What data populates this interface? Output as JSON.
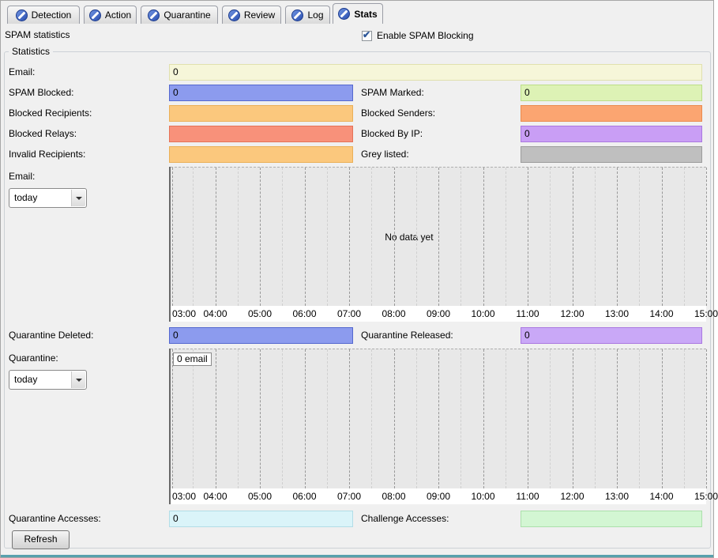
{
  "tabs": [
    {
      "label": "Detection"
    },
    {
      "label": "Action"
    },
    {
      "label": "Quarantine"
    },
    {
      "label": "Review"
    },
    {
      "label": "Log"
    },
    {
      "label": "Stats"
    }
  ],
  "active_tab": "Stats",
  "header": {
    "title": "SPAM statistics",
    "enable_checkbox_label": "Enable SPAM Blocking",
    "enable_checkbox_checked": true,
    "check_glyph": "✔"
  },
  "group": {
    "label": "Statistics"
  },
  "fields": {
    "email": {
      "label": "Email:",
      "value": "0",
      "bg": "#f6f6d9",
      "border": "#e0e0ae"
    },
    "spam_blocked": {
      "label": "SPAM Blocked:",
      "value": "0",
      "bg": "#8c9bee",
      "border": "#5468cf"
    },
    "spam_marked": {
      "label": "SPAM Marked:",
      "value": "0",
      "bg": "#ddf2b5",
      "border": "#bcdd87"
    },
    "blocked_recipients": {
      "label": "Blocked Recipients:",
      "value": "",
      "bg": "#fbc87d",
      "border": "#eab058"
    },
    "blocked_senders": {
      "label": "Blocked Senders:",
      "value": "",
      "bg": "#fba571",
      "border": "#ea8b4e"
    },
    "blocked_relays": {
      "label": "Blocked Relays:",
      "value": "",
      "bg": "#f8917a",
      "border": "#e57257"
    },
    "blocked_by_ip": {
      "label": "Blocked By IP:",
      "value": "0",
      "bg": "#c99ef5",
      "border": "#aa78e0"
    },
    "invalid_recipients": {
      "label": "Invalid Recipients:",
      "value": "",
      "bg": "#fbc87d",
      "border": "#eab058"
    },
    "grey_listed": {
      "label": "Grey listed:",
      "value": "",
      "bg": "#bfbfbf",
      "border": "#9c9c9c"
    },
    "quarantine_deleted": {
      "label": "Quarantine Deleted:",
      "value": "0",
      "bg": "#8c9bee",
      "border": "#5468cf"
    },
    "quarantine_released": {
      "label": "Quarantine Released:",
      "value": "0",
      "bg": "#c9a8f7",
      "border": "#aa78e0"
    },
    "quarantine_accesses": {
      "label": "Quarantine Accesses:",
      "value": "0",
      "bg": "#daf4f9",
      "border": "#b2dde7"
    },
    "challenge_accesses": {
      "label": "Challenge Accesses:",
      "value": "",
      "bg": "#d3f6d3",
      "border": "#abe0ab"
    }
  },
  "selectors": {
    "email": {
      "label": "Email:",
      "value": "today"
    },
    "quarantine": {
      "label": "Quarantine:",
      "value": "today"
    }
  },
  "buttons": {
    "refresh": "Refresh"
  },
  "chart_data": [
    {
      "type": "line",
      "x_ticks": [
        "03:00",
        "04:00",
        "05:00",
        "06:00",
        "07:00",
        "08:00",
        "09:00",
        "10:00",
        "11:00",
        "12:00",
        "13:00",
        "14:00",
        "15:00"
      ],
      "minor_ticks_per_interval": 1,
      "series": [],
      "annotation": "No data yet",
      "grid": "vertical-dashed",
      "plot_bg": "#e8e8e8",
      "legend_position": "none"
    },
    {
      "type": "line",
      "x_ticks": [
        "03:00",
        "04:00",
        "05:00",
        "06:00",
        "07:00",
        "08:00",
        "09:00",
        "10:00",
        "11:00",
        "12:00",
        "13:00",
        "14:00",
        "15:00"
      ],
      "minor_ticks_per_interval": 1,
      "series": [
        {
          "name": "0 email",
          "values": []
        }
      ],
      "grid": "vertical-dashed",
      "plot_bg": "#e8e8e8",
      "legend_position": "top-left"
    }
  ]
}
